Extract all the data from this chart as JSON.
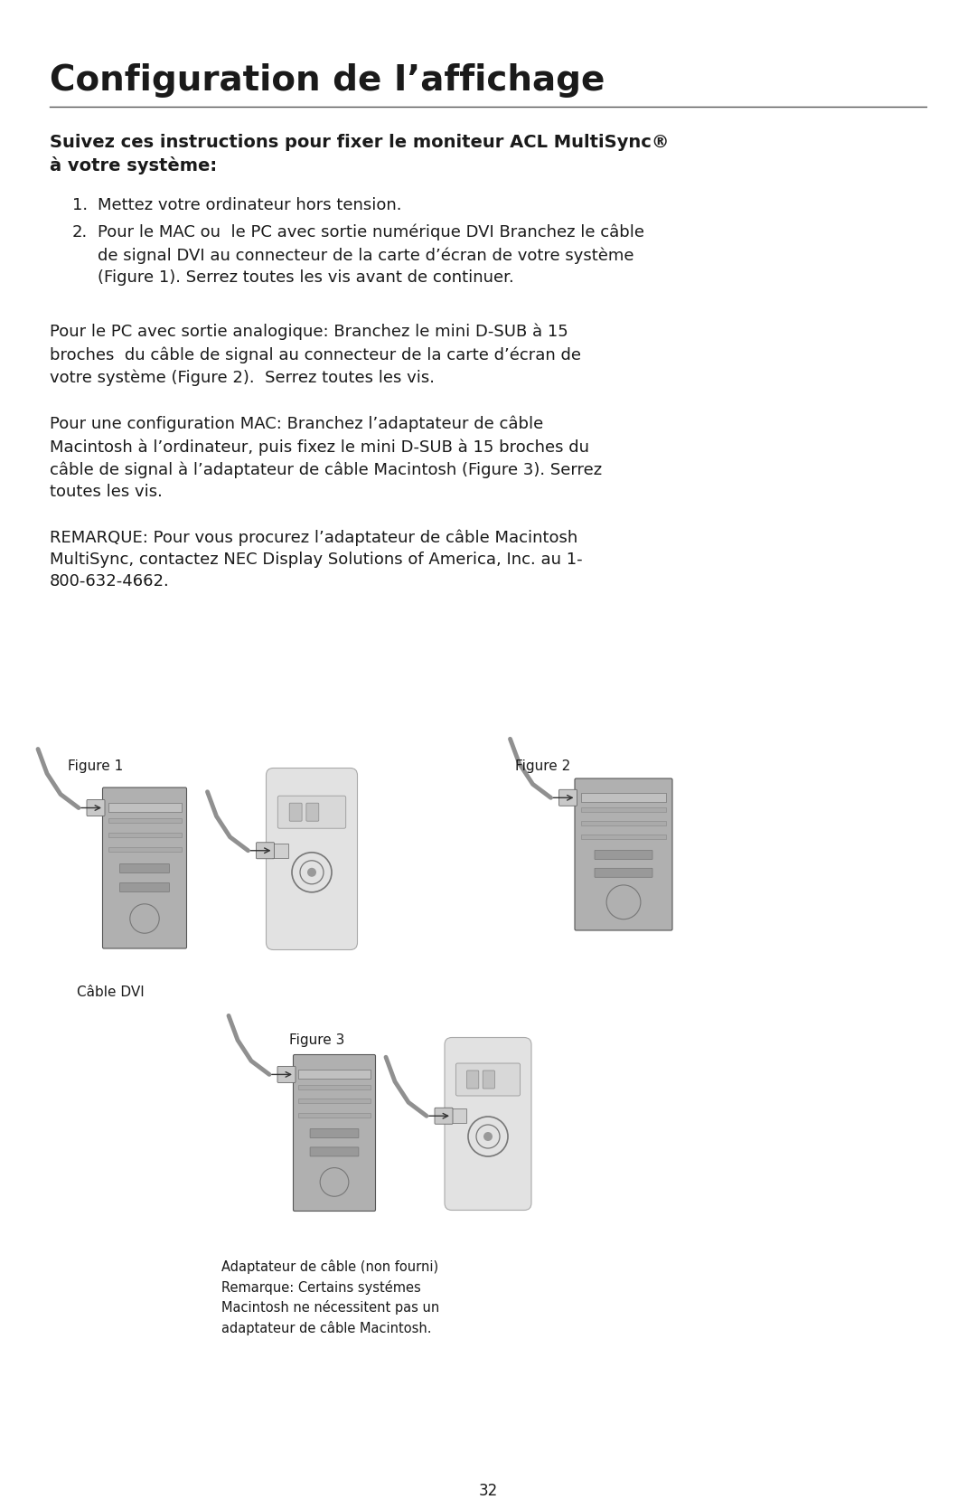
{
  "bg_color": "#ffffff",
  "title": "Configuration de I’affichage",
  "title_fontsize": 28,
  "subtitle": "Suivez ces instructions pour fixer le moniteur ACL MultiSync®\nà votre système:",
  "subtitle_fontsize": 14,
  "body_fontsize": 13,
  "para1_item1": "Mettez votre ordinateur hors tension.",
  "para1_item2": "Pour le MAC ou  le PC avec sortie numérique DVI Branchez le câble\nde signal DVI au connecteur de la carte d’écran de votre système\n(Figure 1). Serrez toutes les vis avant de continuer.",
  "para2": "Pour le PC avec sortie analogique: Branchez le mini D-SUB à 15\nbroches  du câble de signal au connecteur de la carte d’écran de\nvotre système (Figure 2).  Serrez toutes les vis.",
  "para3": "Pour une configuration MAC: Branchez l’adaptateur de câble\nMacintosh à l’ordinateur, puis fixez le mini D-SUB à 15 broches du\ncâble de signal à l’adaptateur de câble Macintosh (Figure 3). Serrez\ntoutes les vis.",
  "para4": "REMARQUE: Pour vous procurez l’adaptateur de câble Macintosh\nMultiSync, contactez NEC Display Solutions of America, Inc. au 1-\n800-632-4662.",
  "fig1_label": "Figure 1",
  "fig2_label": "Figure 2",
  "fig3_label": "Figure 3",
  "cable_dvi_label": "Câble DVI",
  "fig3_caption": "Adaptateur de câble (non fourni)\nRemarque: Certains systémes\nMacintosh ne nécessitent pas un\nadaptateur de câble Macintosh.",
  "page_number": "32",
  "text_color": "#1a1a1a",
  "line_color": "#555555"
}
